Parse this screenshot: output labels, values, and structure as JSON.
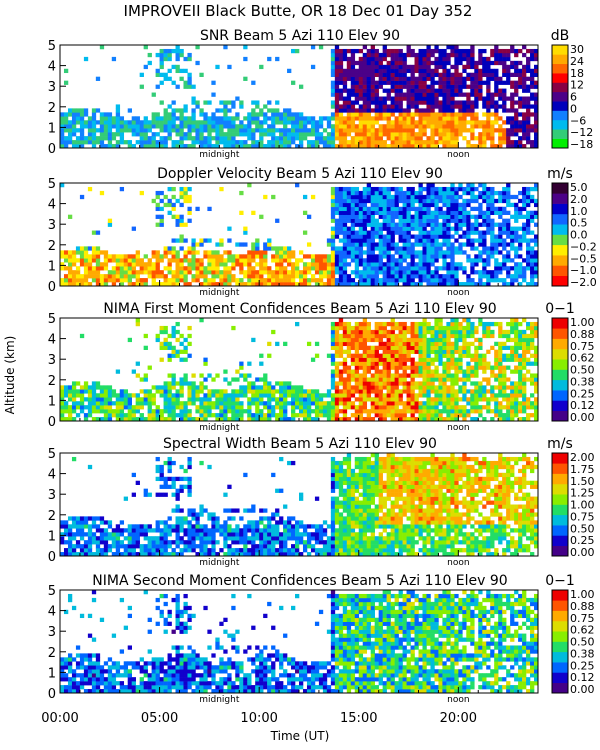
{
  "header": {
    "title": "IMPROVEII  Black Butte, OR  18 Dec 01 Day 352"
  },
  "axes": {
    "xlabel": "Time (UT)",
    "ylabel": "Altitude (km)",
    "x_ticks": [
      "00:00",
      "05:00",
      "10:00",
      "15:00",
      "20:00"
    ],
    "y_ticks": [
      "0",
      "1",
      "2",
      "3",
      "4",
      "5"
    ],
    "midnight_label": "midnight",
    "noon_label": "noon"
  },
  "chart_data": [
    {
      "type": "heatmap",
      "title": "SNR Beam 5 Azi 110 Elev 90",
      "units": "dB",
      "colorbar_ticks": [
        "30",
        "24",
        "18",
        "12",
        "6",
        "0",
        "−6",
        "−12",
        "−18"
      ],
      "colorbar_range": [
        -20,
        33
      ],
      "colors": [
        "#00ee00",
        "#33cc77",
        "#00bbee",
        "#1180ff",
        "#0000bb",
        "#4b0088",
        "#880044",
        "#ff0000",
        "#ff6600",
        "#ffaa00",
        "#ffdd00"
      ],
      "xlim": [
        0,
        24
      ],
      "ylim": [
        0,
        5
      ],
      "xlabel": "Time (UT)",
      "ylabel": "Altitude (km)"
    },
    {
      "type": "heatmap",
      "title": "Doppler Velocity Beam 5 Azi 110 Elev 90",
      "units": "m/s",
      "colorbar_ticks": [
        "5.0",
        "2.0",
        "1.0",
        "0.5",
        "0.0",
        "−0.2",
        "−0.5",
        "−1.0",
        "−2.0"
      ],
      "colorbar_range": [
        -2.0,
        5.0
      ],
      "colors": [
        "#ff0000",
        "#ff5500",
        "#ffaa00",
        "#ffee00",
        "#66dd44",
        "#00bbee",
        "#1166ff",
        "#0000cc",
        "#4b0088",
        "#330033"
      ],
      "xlim": [
        0,
        24
      ],
      "ylim": [
        0,
        5
      ],
      "xlabel": "Time (UT)",
      "ylabel": "Altitude (km)"
    },
    {
      "type": "heatmap",
      "title": "NIMA First Moment Confidences Beam 5 Azi 110 Elev 90",
      "units": "0−1",
      "colorbar_ticks": [
        "1.00",
        "0.88",
        "0.75",
        "0.62",
        "0.50",
        "0.38",
        "0.25",
        "0.12",
        "0.00"
      ],
      "colorbar_range": [
        0,
        1
      ],
      "colors": [
        "#440088",
        "#1100cc",
        "#0066ff",
        "#00bbdd",
        "#22dd66",
        "#88ee00",
        "#dddd00",
        "#ffaa00",
        "#ff5500",
        "#ee0000"
      ],
      "xlim": [
        0,
        24
      ],
      "ylim": [
        0,
        5
      ],
      "xlabel": "Time (UT)",
      "ylabel": "Altitude (km)"
    },
    {
      "type": "heatmap",
      "title": "Spectral Width Beam 5 Azi 110 Elev 90",
      "units": "m/s",
      "colorbar_ticks": [
        "2.00",
        "1.75",
        "1.50",
        "1.25",
        "1.00",
        "0.75",
        "0.50",
        "0.25",
        "0.00"
      ],
      "colorbar_range": [
        0,
        2
      ],
      "colors": [
        "#440088",
        "#1100cc",
        "#0066ff",
        "#00bbdd",
        "#22dd66",
        "#88ee00",
        "#dddd00",
        "#ffaa00",
        "#ff5500",
        "#ee0000"
      ],
      "xlim": [
        0,
        24
      ],
      "ylim": [
        0,
        5
      ],
      "xlabel": "Time (UT)",
      "ylabel": "Altitude (km)"
    },
    {
      "type": "heatmap",
      "title": "NIMA Second Moment Confidences Beam 5 Azi 110 Elev 90",
      "units": "0−1",
      "colorbar_ticks": [
        "1.00",
        "0.88",
        "0.75",
        "0.62",
        "0.50",
        "0.38",
        "0.25",
        "0.12",
        "0.00"
      ],
      "colorbar_range": [
        0,
        1
      ],
      "colors": [
        "#440088",
        "#1100cc",
        "#0066ff",
        "#00bbdd",
        "#22dd66",
        "#88ee00",
        "#dddd00",
        "#ffaa00",
        "#ff5500",
        "#ee0000"
      ],
      "xlim": [
        0,
        24
      ],
      "ylim": [
        0,
        5
      ],
      "xlabel": "Time (UT)",
      "ylabel": "Altitude (km)"
    }
  ]
}
